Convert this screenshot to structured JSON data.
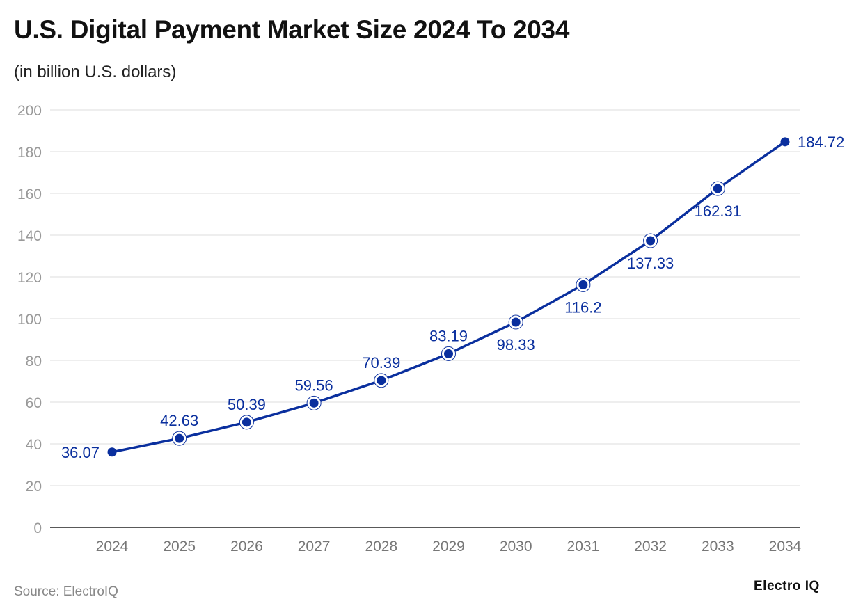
{
  "chart_data": {
    "type": "line",
    "title": "U.S. Digital Payment Market Size 2024 To 2034",
    "subtitle": "(in billion U.S. dollars)",
    "xlabel": "",
    "ylabel": "",
    "categories": [
      "2024",
      "2025",
      "2026",
      "2027",
      "2028",
      "2029",
      "2030",
      "2031",
      "2032",
      "2033",
      "2034"
    ],
    "series": [
      {
        "values": [
          36.07,
          42.63,
          50.39,
          59.56,
          70.39,
          83.19,
          98.33,
          116.2,
          137.33,
          162.31,
          184.72
        ],
        "labels": [
          "36.07",
          "42.63",
          "50.39",
          "59.56",
          "70.39",
          "83.19",
          "98.33",
          "116.2",
          "137.33",
          "162.31",
          "184.72"
        ]
      }
    ],
    "ylim": [
      0,
      200
    ],
    "yticks": [
      "0",
      "20",
      "40",
      "60",
      "80",
      "100",
      "120",
      "140",
      "160",
      "180",
      "200"
    ],
    "grid": true,
    "legend": "none",
    "colors": {
      "line": "#0a2f9e",
      "label": "#0a2f9e",
      "grid": "#e3e3e3",
      "tick": "#999999"
    }
  },
  "footer": {
    "source": "Source: ElectroIQ",
    "logo": "Electro IQ"
  }
}
